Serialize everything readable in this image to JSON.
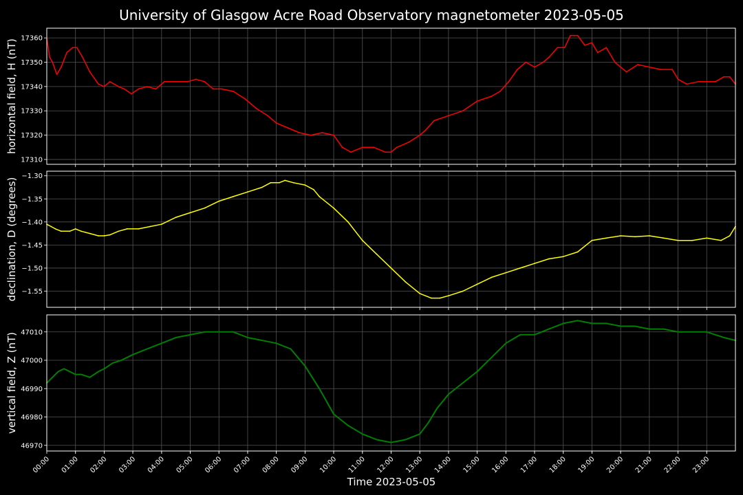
{
  "figure": {
    "title": "University of Glasgow Acre Road Observatory magnetometer 2023-05-05",
    "xlabel": "Time 2023-05-05"
  },
  "chart_data": [
    {
      "type": "line",
      "ylabel": "horizontal field, H (nT)",
      "color": "#ff0000",
      "xlim": [
        0,
        24
      ],
      "ylim": [
        17308,
        17364
      ],
      "yticks": [
        17310,
        17320,
        17330,
        17340,
        17350,
        17360
      ],
      "ytick_labels": [
        "17310",
        "17320",
        "17330",
        "17340",
        "17350",
        "17360"
      ],
      "grid": true,
      "x": [
        0,
        0.1,
        0.2,
        0.35,
        0.5,
        0.7,
        0.9,
        1.05,
        1.25,
        1.5,
        1.8,
        2.0,
        2.2,
        2.5,
        2.7,
        2.95,
        3.2,
        3.5,
        3.8,
        4.1,
        4.5,
        4.9,
        5.2,
        5.5,
        5.8,
        6.1,
        6.5,
        6.9,
        7.3,
        7.7,
        8.0,
        8.4,
        8.8,
        9.2,
        9.6,
        10.0,
        10.3,
        10.6,
        11.0,
        11.4,
        11.8,
        12.0,
        12.2,
        12.6,
        13.0,
        13.2,
        13.5,
        14.0,
        14.5,
        15.0,
        15.5,
        15.8,
        16.1,
        16.4,
        16.7,
        17.0,
        17.3,
        17.5,
        17.8,
        18.05,
        18.25,
        18.5,
        18.75,
        19.0,
        19.2,
        19.5,
        19.8,
        20.0,
        20.2,
        20.6,
        21.0,
        21.4,
        21.8,
        22.0,
        22.3,
        22.7,
        23.0,
        23.3,
        23.6,
        23.8,
        24.0
      ],
      "y": [
        17360,
        17352,
        17350,
        17345,
        17348,
        17354,
        17356,
        17356,
        17352,
        17346,
        17341,
        17340,
        17342,
        17340,
        17339,
        17337,
        17339,
        17340,
        17339,
        17342,
        17342,
        17342,
        17343,
        17342,
        17339,
        17339,
        17338,
        17335,
        17331,
        17328,
        17325,
        17323,
        17321,
        17320,
        17321,
        17320,
        17315,
        17313,
        17315,
        17315,
        17313,
        17313,
        17315,
        17317,
        17320,
        17322,
        17326,
        17328,
        17330,
        17334,
        17336,
        17338,
        17342,
        17347,
        17350,
        17348,
        17350,
        17352,
        17356,
        17356,
        17361,
        17361,
        17357,
        17358,
        17354,
        17356,
        17350,
        17348,
        17346,
        17349,
        17348,
        17347,
        17347,
        17343,
        17341,
        17342,
        17342,
        17342,
        17344,
        17344,
        17341
      ]
    },
    {
      "type": "line",
      "ylabel": "declination, D (degrees)",
      "color": "#ffff00",
      "xlim": [
        0,
        24
      ],
      "ylim": [
        -1.585,
        -1.29
      ],
      "yticks": [
        -1.55,
        -1.5,
        -1.45,
        -1.4,
        -1.35,
        -1.3
      ],
      "ytick_labels": [
        "−1.55",
        "−1.50",
        "−1.45",
        "−1.40",
        "−1.35",
        "−1.30"
      ],
      "grid": true,
      "x": [
        0,
        0.15,
        0.3,
        0.5,
        0.8,
        1.0,
        1.2,
        1.5,
        1.8,
        2.0,
        2.2,
        2.5,
        2.8,
        3.2,
        3.6,
        4.0,
        4.5,
        5.0,
        5.5,
        6.0,
        6.5,
        7.0,
        7.5,
        7.8,
        8.1,
        8.3,
        8.6,
        9.0,
        9.3,
        9.5,
        10.0,
        10.5,
        11.0,
        11.5,
        12.0,
        12.5,
        13.0,
        13.4,
        13.7,
        14.0,
        14.5,
        15.0,
        15.5,
        16.0,
        16.5,
        17.0,
        17.5,
        18.0,
        18.5,
        19.0,
        19.5,
        20.0,
        20.5,
        21.0,
        21.5,
        22.0,
        22.5,
        23.0,
        23.5,
        23.8,
        24.0
      ],
      "y": [
        -1.405,
        -1.41,
        -1.415,
        -1.42,
        -1.42,
        -1.415,
        -1.42,
        -1.425,
        -1.43,
        -1.43,
        -1.428,
        -1.42,
        -1.415,
        -1.415,
        -1.41,
        -1.405,
        -1.39,
        -1.38,
        -1.37,
        -1.355,
        -1.345,
        -1.335,
        -1.325,
        -1.315,
        -1.315,
        -1.31,
        -1.315,
        -1.32,
        -1.33,
        -1.345,
        -1.37,
        -1.4,
        -1.44,
        -1.47,
        -1.5,
        -1.53,
        -1.555,
        -1.565,
        -1.565,
        -1.56,
        -1.55,
        -1.535,
        -1.52,
        -1.51,
        -1.5,
        -1.49,
        -1.48,
        -1.475,
        -1.465,
        -1.44,
        -1.435,
        -1.43,
        -1.432,
        -1.43,
        -1.435,
        -1.44,
        -1.44,
        -1.435,
        -1.44,
        -1.43,
        -1.41
      ]
    },
    {
      "type": "line",
      "ylabel": "vertical field, Z (nT)",
      "color": "#008000",
      "xlim": [
        0,
        24
      ],
      "ylim": [
        46968,
        47016
      ],
      "yticks": [
        46970,
        46980,
        46990,
        47000,
        47010
      ],
      "ytick_labels": [
        "46970",
        "46980",
        "46990",
        "47000",
        "47010"
      ],
      "grid": true,
      "x": [
        0,
        0.2,
        0.4,
        0.6,
        0.8,
        1.0,
        1.2,
        1.5,
        1.8,
        2.0,
        2.3,
        2.6,
        3.0,
        3.5,
        4.0,
        4.5,
        5.0,
        5.5,
        6.0,
        6.5,
        7.0,
        7.5,
        8.0,
        8.5,
        9.0,
        9.5,
        10.0,
        10.5,
        11.0,
        11.5,
        12.0,
        12.5,
        13.0,
        13.3,
        13.6,
        14.0,
        14.5,
        15.0,
        15.5,
        16.0,
        16.5,
        17.0,
        17.5,
        18.0,
        18.5,
        19.0,
        19.5,
        20.0,
        20.5,
        21.0,
        21.5,
        22.0,
        22.5,
        23.0,
        23.3,
        23.6,
        24.0
      ],
      "y": [
        46992,
        46994,
        46996,
        46997,
        46996,
        46995,
        46995,
        46994,
        46996,
        46997,
        46999,
        47000,
        47002,
        47004,
        47006,
        47008,
        47009,
        47010,
        47010,
        47010,
        47008,
        47007,
        47006,
        47004,
        46998,
        46990,
        46981,
        46977,
        46974,
        46972,
        46971,
        46972,
        46974,
        46978,
        46983,
        46988,
        46992,
        46996,
        47001,
        47006,
        47009,
        47009,
        47011,
        47013,
        47014,
        47013,
        47013,
        47012,
        47012,
        47011,
        47011,
        47010,
        47010,
        47010,
        47009,
        47008,
        47007
      ]
    }
  ],
  "xaxis": {
    "tick_labels": [
      "00:00",
      "01:00",
      "02:00",
      "03:00",
      "04:00",
      "05:00",
      "06:00",
      "07:00",
      "08:00",
      "09:00",
      "10:00",
      "11:00",
      "12:00",
      "13:00",
      "14:00",
      "15:00",
      "16:00",
      "17:00",
      "18:00",
      "19:00",
      "20:00",
      "21:00",
      "22:00",
      "23:00"
    ]
  }
}
